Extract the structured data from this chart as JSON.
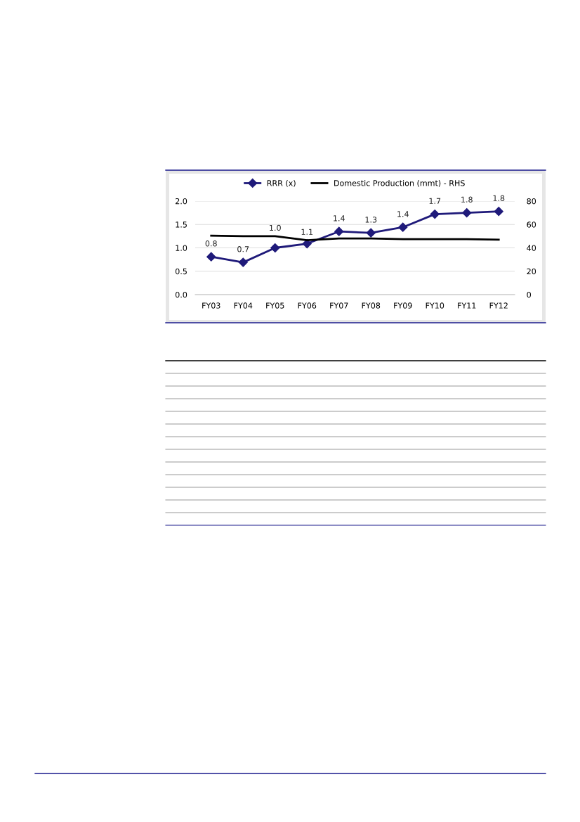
{
  "chart_data": {
    "type": "line",
    "categories": [
      "FY03",
      "FY04",
      "FY05",
      "FY06",
      "FY07",
      "FY08",
      "FY09",
      "FY10",
      "FY11",
      "FY12"
    ],
    "series": [
      {
        "name": "RRR (x)",
        "color": "#1f1a7a",
        "marker": "diamond",
        "values": [
          0.81,
          0.69,
          1.0,
          1.09,
          1.35,
          1.32,
          1.44,
          1.72,
          1.75,
          1.78
        ],
        "value_labels": [
          "0.8",
          "0.7",
          "1.0",
          "1.1",
          "1.4",
          "1.3",
          "1.4",
          "1.7",
          "1.8",
          "1.8"
        ]
      },
      {
        "name": "Domestic Production (mmt) - RHS",
        "color": "#000000",
        "marker": "none",
        "axis": "y2",
        "values": [
          50.5,
          50,
          50,
          46.5,
          48,
          48,
          47.5,
          47.5,
          47.5,
          47
        ]
      }
    ],
    "ylim": [
      0,
      2.0
    ],
    "yticks": [
      {
        "value": 0,
        "label": "0.0"
      },
      {
        "value": 0.5,
        "label": "0.5"
      },
      {
        "value": 1.0,
        "label": "1.0"
      },
      {
        "value": 1.5,
        "label": "1.5"
      },
      {
        "value": 2.0,
        "label": "2.0"
      }
    ],
    "y2lim": [
      0,
      80
    ],
    "y2ticks": [
      0,
      20,
      40,
      60,
      80
    ],
    "grid": "y",
    "legend": "top",
    "line_style": "solid"
  }
}
